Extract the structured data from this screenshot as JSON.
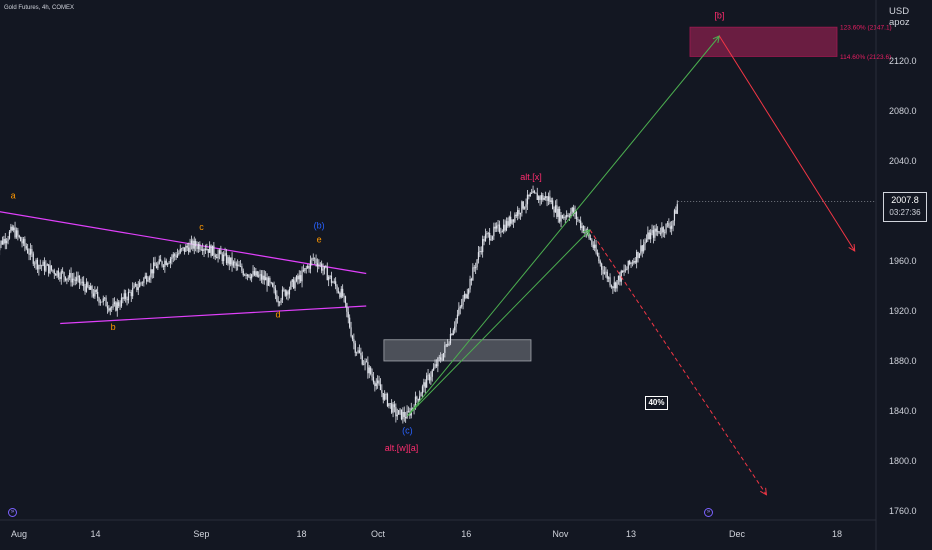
{
  "header": {
    "symbol_line": "Gold Futures, 4h, COMEX"
  },
  "scale": {
    "currency": "USD",
    "mode": "apoz"
  },
  "last_price": {
    "value": "2007.8",
    "countdown": "03:27:36"
  },
  "probability_label": "40%",
  "colors": {
    "background": "#131722",
    "candle": "#e0e3eb",
    "triangle": "#e040fb",
    "wave_orange": "#ff9800",
    "wave_blue": "#2962ff",
    "wave_pink": "#ff2d6f",
    "up_arrow": "#4caf50",
    "down_arrow": "#f23645",
    "target_zone": "#7a1f47",
    "nav_icon": "#7b61ff"
  },
  "chart_data": {
    "type": "candlestick",
    "title": "Gold Futures, 4h, COMEX",
    "y_axis": {
      "ticks": [
        2120.0,
        2080.0,
        2040.0,
        2000.0,
        1960.0,
        1920.0,
        1880.0,
        1840.0,
        1800.0,
        1760.0
      ],
      "range": [
        1750,
        2170
      ]
    },
    "x_axis": {
      "ticks": [
        {
          "label": "Aug",
          "date": "2023-08-01"
        },
        {
          "label": "14",
          "date": "2023-08-14"
        },
        {
          "label": "Sep",
          "date": "2023-09-01"
        },
        {
          "label": "18",
          "date": "2023-09-18"
        },
        {
          "label": "Oct",
          "date": "2023-10-01"
        },
        {
          "label": "16",
          "date": "2023-10-16"
        },
        {
          "label": "Nov",
          "date": "2023-11-01"
        },
        {
          "label": "13",
          "date": "2023-11-13"
        },
        {
          "label": "Dec",
          "date": "2023-12-01"
        },
        {
          "label": "18",
          "date": "2023-12-18"
        }
      ]
    },
    "price_path": [
      [
        "2023-07-28",
        1970
      ],
      [
        "2023-07-31",
        1985
      ],
      [
        "2023-08-01",
        1978
      ],
      [
        "2023-08-02",
        1972
      ],
      [
        "2023-08-04",
        1958
      ],
      [
        "2023-08-08",
        1950
      ],
      [
        "2023-08-11",
        1944
      ],
      [
        "2023-08-15",
        1929
      ],
      [
        "2023-08-17",
        1922
      ],
      [
        "2023-08-21",
        1939
      ],
      [
        "2023-08-24",
        1955
      ],
      [
        "2023-08-28",
        1966
      ],
      [
        "2023-08-30",
        1972
      ],
      [
        "2023-09-01",
        1973
      ],
      [
        "2023-09-05",
        1962
      ],
      [
        "2023-09-08",
        1952
      ],
      [
        "2023-09-12",
        1945
      ],
      [
        "2023-09-14",
        1930
      ],
      [
        "2023-09-18",
        1948
      ],
      [
        "2023-09-20",
        1962
      ],
      [
        "2023-09-21",
        1958
      ],
      [
        "2023-09-25",
        1932
      ],
      [
        "2023-09-27",
        1892
      ],
      [
        "2023-10-02",
        1852
      ],
      [
        "2023-10-04",
        1838
      ],
      [
        "2023-10-06",
        1836
      ],
      [
        "2023-10-09",
        1862
      ],
      [
        "2023-10-12",
        1885
      ],
      [
        "2023-10-16",
        1935
      ],
      [
        "2023-10-19",
        1978
      ],
      [
        "2023-10-23",
        1990
      ],
      [
        "2023-10-27",
        2012
      ],
      [
        "2023-10-30",
        2010
      ],
      [
        "2023-11-01",
        1995
      ],
      [
        "2023-11-03",
        2000
      ],
      [
        "2023-11-06",
        1978
      ],
      [
        "2023-11-08",
        1955
      ],
      [
        "2023-11-10",
        1940
      ],
      [
        "2023-11-14",
        1965
      ],
      [
        "2023-11-16",
        1980
      ],
      [
        "2023-11-20",
        1990
      ],
      [
        "2023-11-21",
        2007.8
      ]
    ],
    "projections": [
      {
        "name": "up",
        "from": [
          "2023-10-06",
          1836
        ],
        "to": [
          "2023-11-28",
          2140
        ]
      },
      {
        "name": "down-after-target",
        "from": [
          "2023-11-28",
          2140
        ],
        "to": [
          "2023-12-21",
          1968
        ]
      },
      {
        "name": "down-alt",
        "from": [
          "2023-11-06",
          1985
        ],
        "to": [
          "2023-12-06",
          1773
        ],
        "dashed": true
      },
      {
        "name": "alt-up",
        "from": [
          "2023-10-06",
          1836
        ],
        "to": [
          "2023-11-06",
          1985
        ]
      }
    ],
    "triangle": [
      {
        "from": [
          "2023-07-28",
          2000
        ],
        "to": [
          "2023-09-29",
          1950
        ]
      },
      {
        "from": [
          "2023-08-08",
          1910
        ],
        "to": [
          "2023-09-29",
          1924
        ]
      }
    ],
    "zones": [
      {
        "name": "support",
        "x": [
          "2023-10-02",
          "2023-10-27"
        ],
        "y": [
          1880,
          1897
        ]
      },
      {
        "name": "target",
        "x": [
          "2023-11-23",
          "2023-12-18"
        ],
        "y": [
          2123.6,
          2147.1
        ]
      }
    ],
    "levels": [
      {
        "label": "123.60% (2147.1)",
        "price": 2147.1
      },
      {
        "label": "114.60% (2123.6)",
        "price": 2123.6
      }
    ],
    "wave_labels": [
      {
        "text": "a",
        "date": "2023-07-31",
        "price": 2010,
        "color": "wave_orange"
      },
      {
        "text": "b",
        "date": "2023-08-17",
        "price": 1905,
        "color": "wave_orange"
      },
      {
        "text": "c",
        "date": "2023-09-01",
        "price": 1985,
        "color": "wave_orange"
      },
      {
        "text": "d",
        "date": "2023-09-14",
        "price": 1915,
        "color": "wave_orange"
      },
      {
        "text": "e",
        "date": "2023-09-21",
        "price": 1975,
        "color": "wave_orange"
      },
      {
        "text": "(b)",
        "date": "2023-09-21",
        "price": 1986,
        "color": "wave_blue"
      },
      {
        "text": "(c)",
        "date": "2023-10-06",
        "price": 1822,
        "color": "wave_blue"
      },
      {
        "text": "alt.[w][a]",
        "date": "2023-10-05",
        "price": 1808,
        "color": "wave_pink"
      },
      {
        "text": "alt.[x]",
        "date": "2023-10-27",
        "price": 2025,
        "color": "wave_pink"
      },
      {
        "text": "[b]",
        "date": "2023-11-28",
        "price": 2154,
        "color": "wave_pink"
      }
    ]
  }
}
